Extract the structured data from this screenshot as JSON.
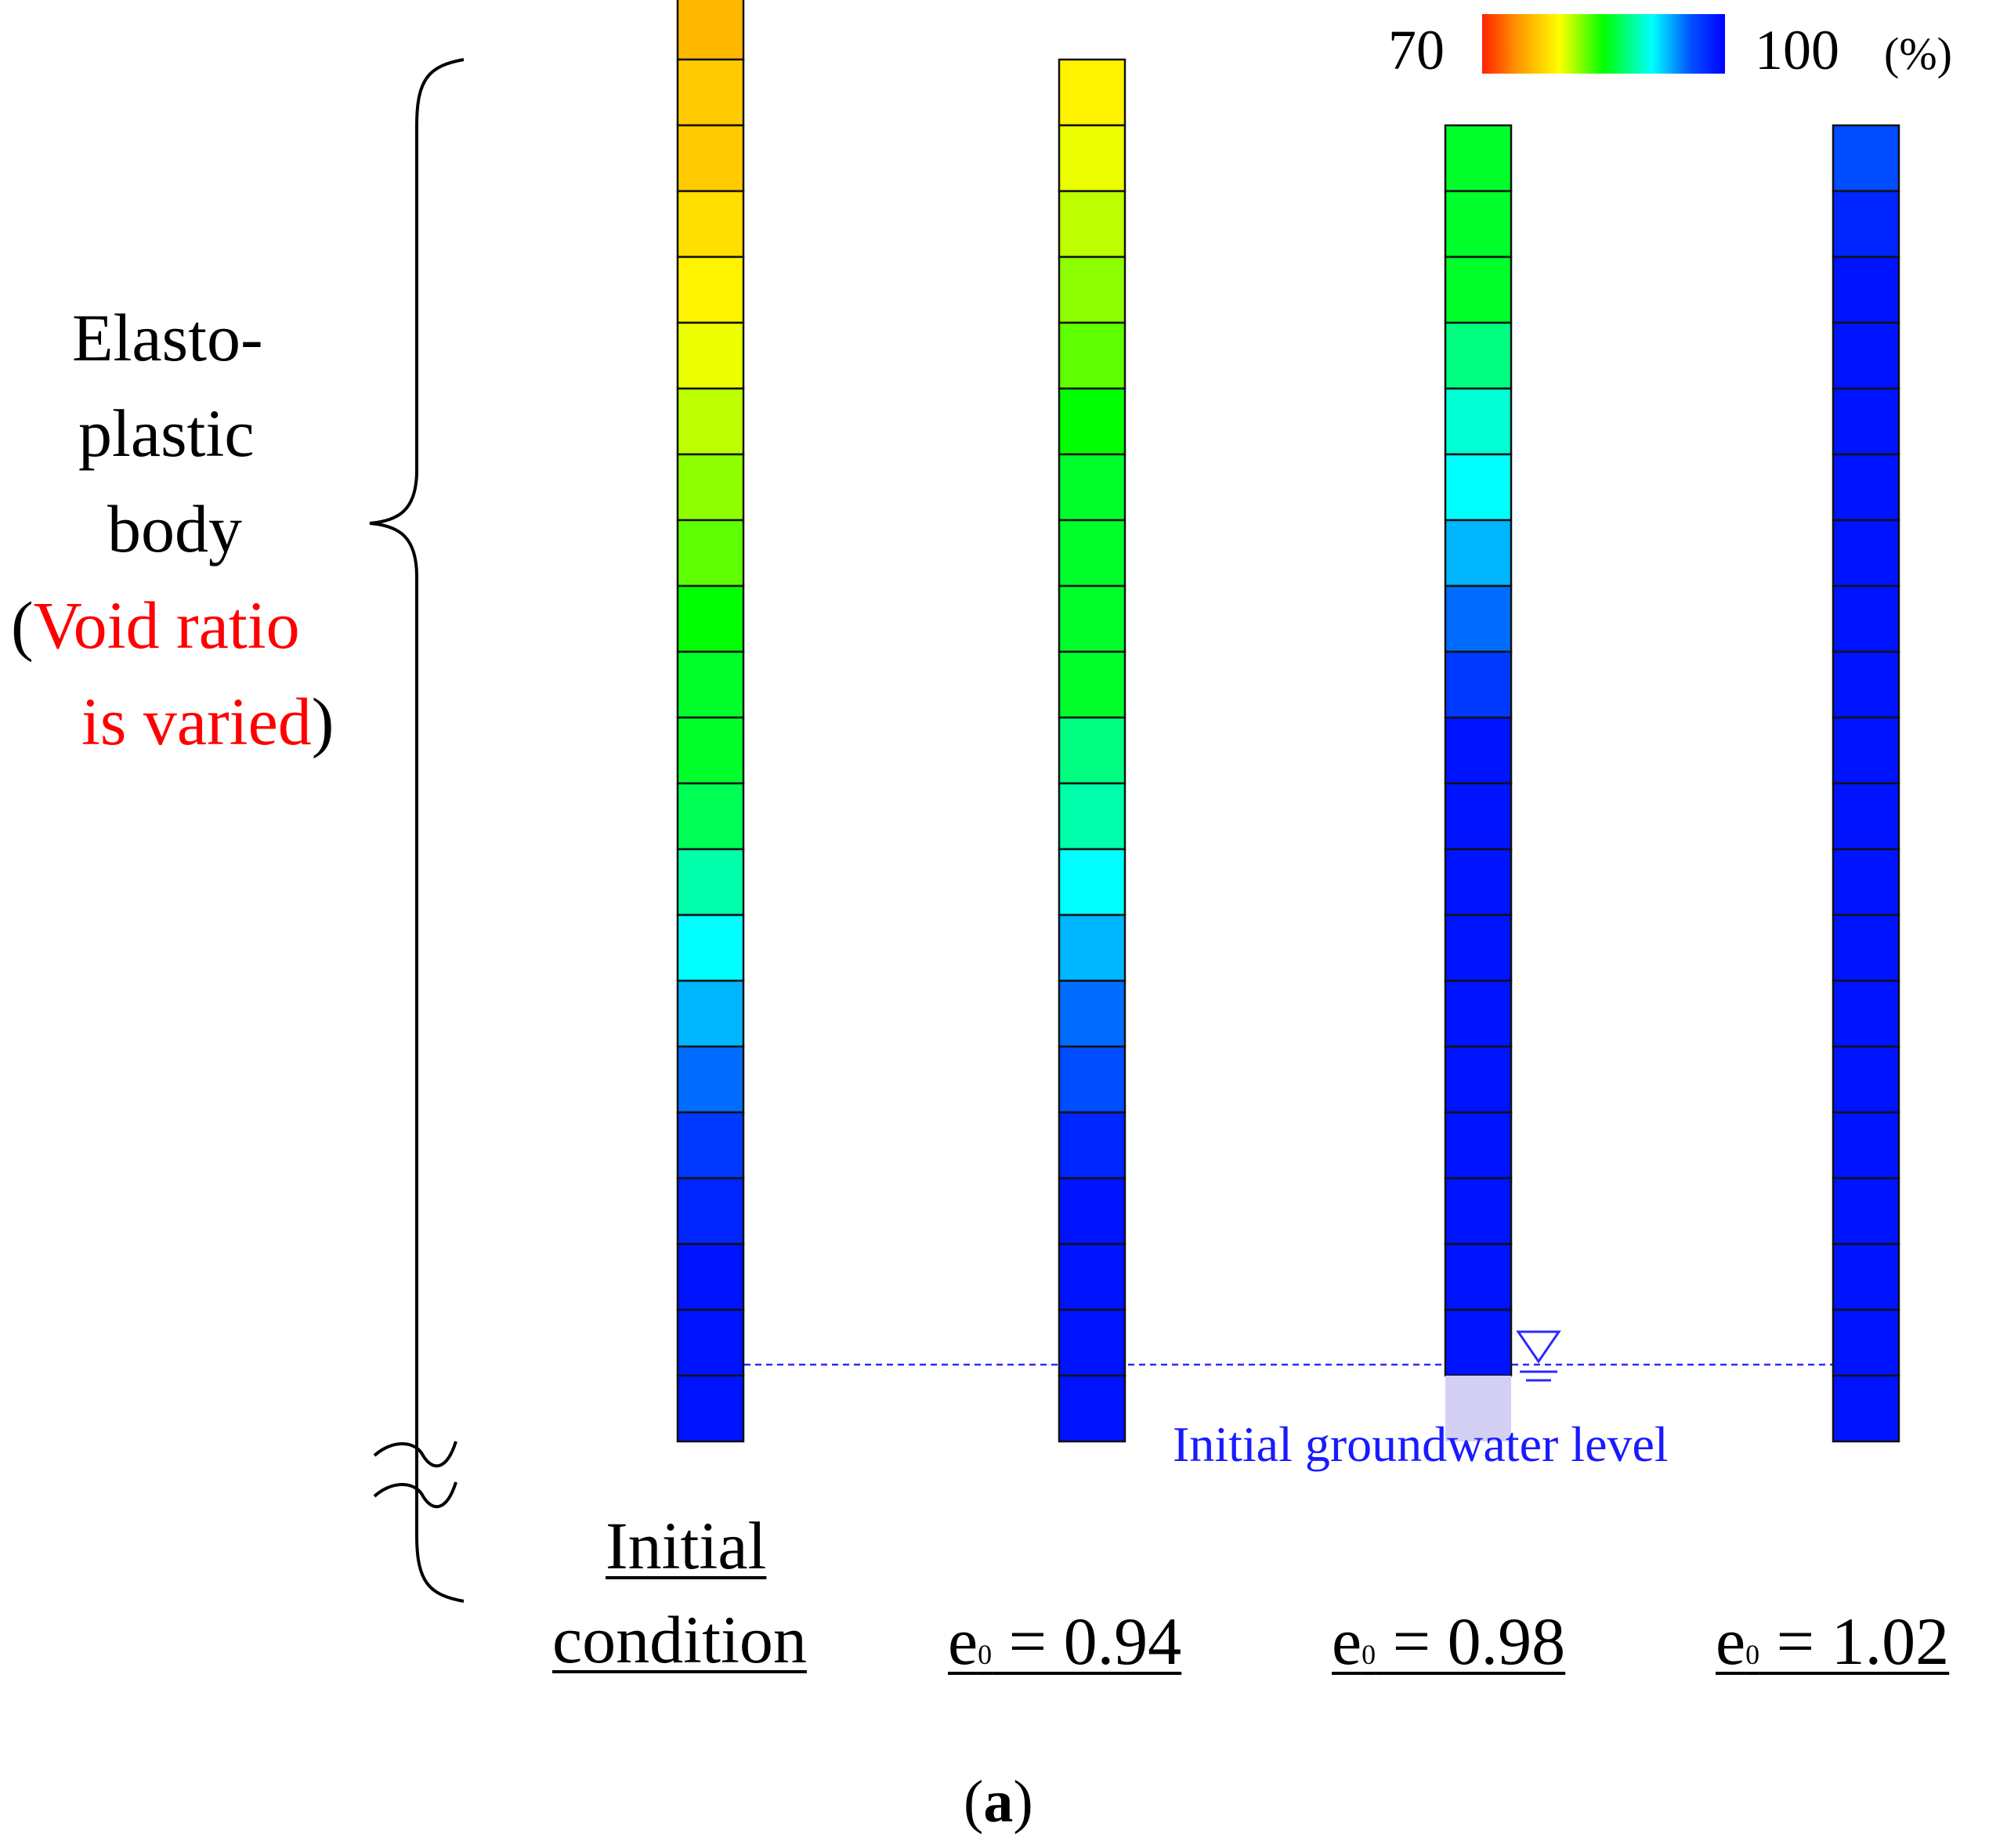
{
  "legend": {
    "min_label": "70",
    "max_label": "100",
    "unit": "(%)",
    "gradient_stops": [
      "#ff2200",
      "#ff9900",
      "#ffff00",
      "#00ff00",
      "#00ffff",
      "#0050ff",
      "#0000ff"
    ]
  },
  "left_label": {
    "lines": [
      "Elasto-",
      "plastic",
      "body"
    ],
    "paren_open": "(",
    "red_line1": "Void ratio",
    "red_line2": "is varied",
    "paren_close": ")"
  },
  "groundwater": {
    "label": "Initial groundwater level",
    "color": "#1a1aff",
    "symbol": "water-table-icon"
  },
  "columns": [
    {
      "label_line1": "Initial",
      "label_line2": "condition",
      "degree_of_saturation": [
        76,
        77,
        77,
        78,
        79,
        80,
        81,
        82,
        83,
        85,
        86,
        86,
        87,
        89,
        91,
        93,
        95,
        97,
        98,
        99,
        99,
        99
      ],
      "partially_saturated_bottom": false
    },
    {
      "label_main": "e",
      "label_sub": "0",
      "label_value": " = 0.94",
      "degree_of_saturation": [
        79,
        80,
        81,
        82,
        83,
        85,
        86,
        86,
        86,
        86,
        88,
        89,
        91,
        93,
        95,
        96,
        98,
        99,
        99,
        99,
        99
      ],
      "partially_saturated_bottom": false
    },
    {
      "label_main": "e",
      "label_sub": "0",
      "label_value": " = 0.98",
      "degree_of_saturation": [
        86,
        86,
        86,
        88,
        90,
        91,
        93,
        95,
        97,
        99,
        99,
        99,
        99,
        99,
        99,
        99,
        99,
        99,
        99
      ],
      "partially_saturated_bottom": true
    },
    {
      "label_main": "e",
      "label_sub": "0",
      "label_value": " = 1.02",
      "degree_of_saturation": [
        96,
        98,
        99,
        99,
        99,
        99,
        99,
        99,
        99,
        99,
        99,
        99,
        99,
        99,
        99,
        99,
        99,
        99,
        99,
        99
      ],
      "partially_saturated_bottom": false
    }
  ],
  "caption": {
    "open": "(",
    "letter": "a",
    "close": ")"
  }
}
